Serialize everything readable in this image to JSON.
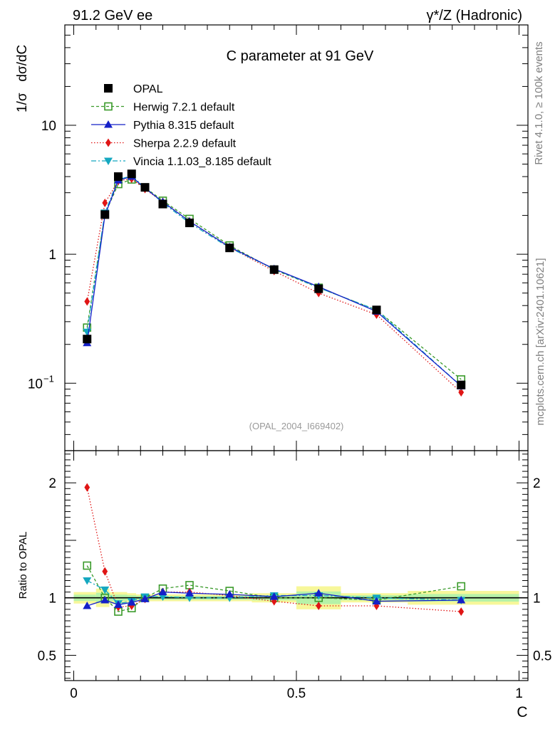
{
  "header": {
    "left": "91.2 GeV ee",
    "right": "γ*/Z (Hadronic)"
  },
  "side_labels": {
    "rivet": "Rivet 4.1.0, ≥ 100k events",
    "site": "mcplots.cern.ch [arXiv:2401.10621]"
  },
  "chart_data": {
    "type": "line",
    "title": "C parameter at 91 GeV",
    "analysis_id": "(OPAL_2004_I669402)",
    "ylabel": "1/σ   dσ/dC",
    "ratio_ylabel": "Ratio to OPAL",
    "xlabel": "C",
    "xlim": [
      -0.02,
      1.02
    ],
    "ylim": [
      0.03,
      60
    ],
    "yscale": "log",
    "ratio_ylim": [
      0.28,
      2.28
    ],
    "x_ticks": [
      {
        "v": 0,
        "label": "0"
      },
      {
        "v": 0.5,
        "label": "0.5"
      },
      {
        "v": 1,
        "label": "1"
      }
    ],
    "y_ticks": [
      {
        "v": 10,
        "label": "10",
        "sup": ""
      },
      {
        "v": 1,
        "label": "1",
        "sup": ""
      },
      {
        "v": 0.1,
        "label": "10",
        "sup": "−1"
      }
    ],
    "ratio_ticks": [
      {
        "v": 2,
        "label": "2"
      },
      {
        "v": 1,
        "label": "1"
      },
      {
        "v": 0.5,
        "label": "0.5"
      }
    ],
    "x": [
      0.03,
      0.07,
      0.1,
      0.13,
      0.16,
      0.2,
      0.26,
      0.35,
      0.45,
      0.55,
      0.68,
      0.87
    ],
    "bins": [
      [
        0.0,
        0.05
      ],
      [
        0.05,
        0.08
      ],
      [
        0.08,
        0.12
      ],
      [
        0.12,
        0.14
      ],
      [
        0.14,
        0.18
      ],
      [
        0.18,
        0.22
      ],
      [
        0.22,
        0.3
      ],
      [
        0.3,
        0.4
      ],
      [
        0.4,
        0.5
      ],
      [
        0.5,
        0.6
      ],
      [
        0.6,
        0.75
      ],
      [
        0.75,
        1.0
      ]
    ],
    "ratio_band_halfwidth": [
      0.05,
      0.08,
      0.05,
      0.04,
      0.03,
      0.03,
      0.03,
      0.03,
      0.04,
      0.1,
      0.04,
      0.06
    ],
    "series": [
      {
        "name": "OPAL",
        "key": "data",
        "color": "#000000",
        "dash": "",
        "marker": "filled-square",
        "values": [
          0.22,
          2.03,
          4.0,
          4.2,
          3.3,
          2.45,
          1.75,
          1.12,
          0.76,
          0.54,
          0.37,
          0.097
        ]
      },
      {
        "name": "Herwig 7.2.1 default",
        "key": "herwig",
        "color": "#3a9a2a",
        "dash": "4,3",
        "marker": "open-square",
        "values": [
          0.27,
          2.05,
          3.5,
          3.8,
          3.3,
          2.6,
          1.88,
          1.17,
          0.76,
          0.55,
          0.37,
          0.107
        ]
      },
      {
        "name": "Pythia 8.315 default",
        "key": "pythia",
        "color": "#1420c8",
        "dash": "",
        "marker": "triangle-up",
        "values": [
          0.205,
          2.0,
          3.75,
          4.0,
          3.25,
          2.55,
          1.8,
          1.14,
          0.77,
          0.56,
          0.36,
          0.095
        ]
      },
      {
        "name": "Sherpa 2.2.9 default",
        "key": "sherpa",
        "color": "#e01515",
        "dash": "1.5,2.5",
        "marker": "diamond",
        "values": [
          0.43,
          2.5,
          3.7,
          3.85,
          3.2,
          2.55,
          1.8,
          1.13,
          0.74,
          0.5,
          0.34,
          0.085
        ]
      },
      {
        "name": "Vincia 1.1.03_8.185 default",
        "key": "vincia",
        "color": "#15a8c0",
        "dash": "7,3,2,3",
        "marker": "triangle-down",
        "values": [
          0.25,
          2.1,
          3.8,
          4.05,
          3.3,
          2.5,
          1.75,
          1.12,
          0.77,
          0.55,
          0.37,
          0.095
        ]
      }
    ],
    "ratios": {
      "herwig": [
        1.28,
        1.0,
        0.88,
        0.91,
        1.0,
        1.08,
        1.11,
        1.06,
        1.0,
        1.0,
        0.98,
        1.1
      ],
      "pythia": [
        0.93,
        0.98,
        0.94,
        0.96,
        0.99,
        1.05,
        1.04,
        1.03,
        1.01,
        1.04,
        0.97,
        0.98
      ],
      "sherpa": [
        1.96,
        1.23,
        0.92,
        0.93,
        0.99,
        1.05,
        1.05,
        1.02,
        0.97,
        0.93,
        0.93,
        0.88
      ],
      "vincia": [
        1.15,
        1.07,
        0.95,
        0.97,
        1.01,
        1.01,
        1.0,
        1.0,
        1.02,
        1.02,
        1.0,
        0.98
      ]
    }
  }
}
